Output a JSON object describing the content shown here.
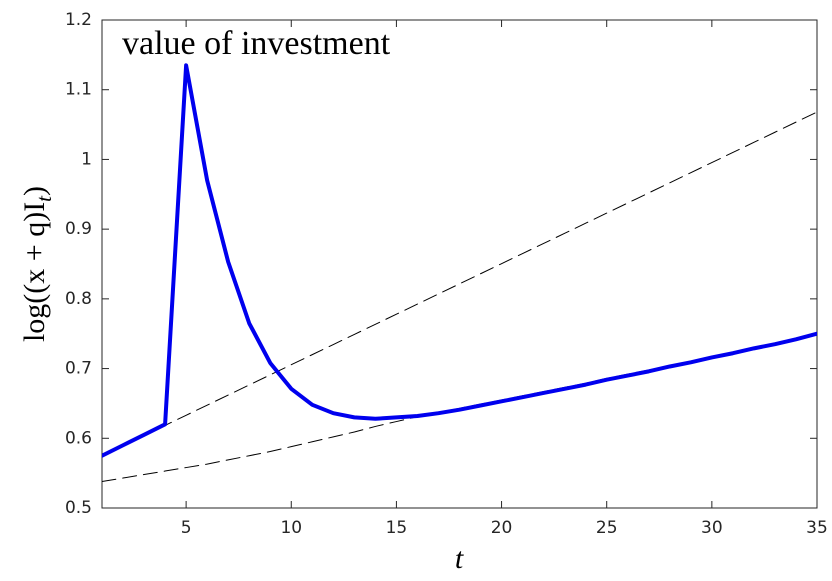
{
  "chart_data": {
    "type": "line",
    "annotation": "value of investment",
    "x_label": "t",
    "y_label": {
      "text": "log((x + q)I",
      "subscript": "t",
      "close": ")"
    },
    "x": [
      1,
      2,
      3,
      4,
      5,
      6,
      7,
      8,
      9,
      10,
      11,
      12,
      13,
      14,
      15,
      16,
      17,
      18,
      19,
      20,
      21,
      22,
      23,
      24,
      25,
      26,
      27,
      28,
      29,
      30,
      31,
      32,
      33,
      34,
      35
    ],
    "series": [
      {
        "color": "#000000",
        "style": "dashed",
        "values": [
          0.575,
          0.5895,
          0.604,
          0.6185,
          0.633,
          0.6475,
          0.662,
          0.6765,
          0.691,
          0.7055,
          0.72,
          0.7345,
          0.749,
          0.7635,
          0.778,
          0.7925,
          0.807,
          0.8215,
          0.836,
          0.8505,
          0.865,
          0.8795,
          0.894,
          0.9085,
          0.923,
          0.9375,
          0.952,
          0.9665,
          0.981,
          0.9955,
          1.01,
          1.0245,
          1.039,
          1.0535,
          1.068
        ]
      },
      {
        "color": "#000000",
        "style": "dashed",
        "values": [
          0.538,
          0.543,
          0.548,
          0.553,
          0.558,
          0.563,
          0.569,
          0.575,
          0.581,
          0.588,
          0.595,
          0.602,
          0.609,
          0.617,
          0.624,
          0.631,
          0.637,
          0.643,
          0.649,
          0.655,
          0.661,
          0.667,
          0.673,
          0.679,
          0.686,
          0.692,
          0.698,
          0.704,
          0.71,
          0.717,
          0.723,
          0.729,
          0.735,
          0.742,
          0.75
        ]
      },
      {
        "color": "#0000ee",
        "style": "solid",
        "values": [
          0.575,
          0.59,
          0.605,
          0.62,
          1.135,
          0.97,
          0.853,
          0.765,
          0.708,
          0.671,
          0.648,
          0.636,
          0.63,
          0.628,
          0.63,
          0.632,
          0.636,
          0.641,
          0.647,
          0.653,
          0.659,
          0.665,
          0.671,
          0.677,
          0.684,
          0.69,
          0.696,
          0.703,
          0.709,
          0.716,
          0.722,
          0.729,
          0.735,
          0.742,
          0.75
        ]
      }
    ],
    "xlim": [
      1,
      35
    ],
    "ylim": [
      0.5,
      1.2
    ],
    "xticks": [
      5,
      10,
      15,
      20,
      25,
      30,
      35
    ],
    "yticks": [
      0.5,
      0.6,
      0.7,
      0.8,
      0.9,
      1,
      1.1,
      1.2
    ]
  }
}
